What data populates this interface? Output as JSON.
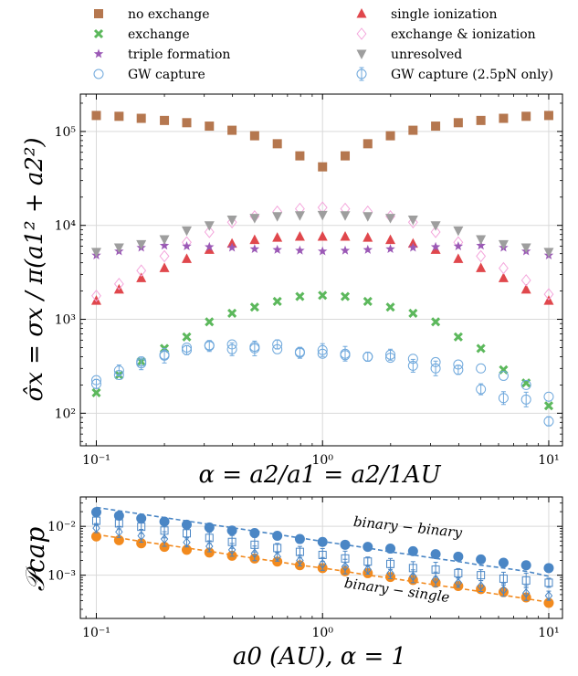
{
  "chart_data": [
    {
      "type": "scatter",
      "xscale": "log",
      "yscale": "log",
      "xlim": [
        0.085,
        11.5
      ],
      "ylim": [
        45,
        250000
      ],
      "grid": true,
      "legend_position": "top",
      "ylabel": "σ̂x = σx / π(a1² + a2²)",
      "xlabel": "α = a2/a1 = a2/1AU",
      "xticks": [
        {
          "v": 0.1,
          "label": "10⁻¹"
        },
        {
          "v": 1,
          "label": "10⁰"
        },
        {
          "v": 10,
          "label": "10¹"
        }
      ],
      "yticks": [
        {
          "v": 100,
          "label": "10²"
        },
        {
          "v": 1000,
          "label": "10³"
        },
        {
          "v": 10000,
          "label": "10⁴"
        },
        {
          "v": 100000,
          "label": "10⁵"
        }
      ],
      "x": [
        0.1,
        0.126,
        0.158,
        0.2,
        0.251,
        0.316,
        0.398,
        0.501,
        0.631,
        0.794,
        1.0,
        1.259,
        1.585,
        1.995,
        2.512,
        3.162,
        3.981,
        5.012,
        6.31,
        7.943,
        10.0
      ],
      "series": [
        {
          "name": "no exchange",
          "marker": "square",
          "color": "#b5774f",
          "values": [
            148000,
            145000,
            138000,
            131000,
            124000,
            114000,
            103000,
            90000,
            74000,
            55000,
            42000,
            55000,
            74000,
            90000,
            103000,
            114000,
            124000,
            131000,
            138000,
            145000,
            148000
          ]
        },
        {
          "name": "single ionization",
          "marker": "triangle-up",
          "color": "#e0474c",
          "values": [
            1580,
            2080,
            2750,
            3520,
            4400,
            5500,
            6400,
            7000,
            7400,
            7600,
            7600,
            7600,
            7400,
            7000,
            6400,
            5500,
            4400,
            3520,
            2750,
            2080,
            1580
          ]
        },
        {
          "name": "exchange",
          "marker": "x",
          "color": "#5cb85c",
          "values": [
            165,
            255,
            355,
            490,
            650,
            940,
            1160,
            1350,
            1550,
            1750,
            1800,
            1750,
            1550,
            1350,
            1160,
            940,
            650,
            490,
            290,
            210,
            120
          ]
        },
        {
          "name": "exchange & ionization",
          "marker": "diamond-open",
          "color": "#f4a6dc",
          "values": [
            1780,
            2380,
            3300,
            4700,
            6600,
            8500,
            10800,
            12500,
            14000,
            15000,
            15500,
            15000,
            14000,
            12500,
            10800,
            8500,
            6600,
            4700,
            3500,
            2600,
            1850
          ]
        },
        {
          "name": "triple formation",
          "marker": "star",
          "color": "#9b59b6",
          "values": [
            4800,
            5300,
            5800,
            6100,
            6000,
            5900,
            5800,
            5600,
            5500,
            5400,
            5300,
            5400,
            5500,
            5600,
            5800,
            5900,
            6000,
            6100,
            5800,
            5300,
            4800
          ]
        },
        {
          "name": "unresolved",
          "marker": "triangle-down",
          "color": "#9e9e9e",
          "values": [
            5200,
            5800,
            6300,
            7100,
            8800,
            10000,
            11500,
            12000,
            12500,
            12800,
            12900,
            12800,
            12500,
            12000,
            11500,
            10000,
            8800,
            7100,
            6300,
            5800,
            5200
          ]
        },
        {
          "name": "GW capture",
          "marker": "circle-open",
          "color": "#6fa8dc",
          "values": [
            225,
            255,
            355,
            420,
            500,
            530,
            540,
            510,
            480,
            450,
            430,
            415,
            400,
            390,
            380,
            350,
            330,
            300,
            250,
            200,
            150
          ]
        },
        {
          "name": "GW capture (2.5pN only)",
          "marker": "circle-open-errorbar",
          "color": "#6fa8dc",
          "values": [
            205,
            285,
            340,
            410,
            470,
            520,
            480,
            490,
            540,
            440,
            470,
            430,
            400,
            420,
            320,
            300,
            290,
            180,
            145,
            140,
            82
          ]
        }
      ],
      "legend": [
        {
          "label": "no exchange",
          "marker": "square",
          "color": "#b5774f"
        },
        {
          "label": "single ionization",
          "marker": "triangle-up",
          "color": "#e0474c"
        },
        {
          "label": "exchange",
          "marker": "x",
          "color": "#5cb85c"
        },
        {
          "label": "exchange & ionization",
          "marker": "diamond-open",
          "color": "#f4a6dc"
        },
        {
          "label": "triple formation",
          "marker": "star",
          "color": "#9b59b6"
        },
        {
          "label": "unresolved",
          "marker": "triangle-down",
          "color": "#9e9e9e"
        },
        {
          "label": "GW capture",
          "marker": "circle-open",
          "color": "#6fa8dc"
        },
        {
          "label": "GW capture (2.5pN only)",
          "marker": "circle-open-errorbar",
          "color": "#6fa8dc"
        }
      ]
    },
    {
      "type": "scatter",
      "xscale": "log",
      "yscale": "log",
      "xlim": [
        0.085,
        11.5
      ],
      "ylim": [
        0.00013,
        0.04
      ],
      "grid": true,
      "ylabel": "𝒫cap",
      "xlabel": "a0 (AU),  α = 1",
      "xticks": [
        {
          "v": 0.1,
          "label": "10⁻¹"
        },
        {
          "v": 1,
          "label": "10⁰"
        },
        {
          "v": 10,
          "label": "10¹"
        }
      ],
      "yticks": [
        {
          "v": 0.001,
          "label": "10⁻³"
        },
        {
          "v": 0.01,
          "label": "10⁻²"
        }
      ],
      "x": [
        0.1,
        0.126,
        0.158,
        0.2,
        0.251,
        0.316,
        0.398,
        0.501,
        0.631,
        0.794,
        1.0,
        1.259,
        1.585,
        1.995,
        2.512,
        3.162,
        3.981,
        5.012,
        6.31,
        7.943,
        10.0
      ],
      "annotations": [
        "binary − binary",
        "binary − single"
      ],
      "series": [
        {
          "name": "binary-binary",
          "marker": "circle",
          "color": "#4a86c5",
          "values": [
            0.0195,
            0.0165,
            0.0145,
            0.0125,
            0.0108,
            0.0095,
            0.0082,
            0.0073,
            0.0064,
            0.0055,
            0.0048,
            0.0042,
            0.0038,
            0.0035,
            0.0031,
            0.0027,
            0.0024,
            0.0021,
            0.0018,
            0.0016,
            0.0014
          ]
        },
        {
          "name": "binary-binary fit",
          "marker": "dashed-line",
          "color": "#4a86c5",
          "values": [
            0.0245,
            0.0208,
            0.0178,
            0.0151,
            0.0129,
            0.011,
            0.0094,
            0.008,
            0.0068,
            0.0058,
            0.0049,
            0.0042,
            0.0036,
            0.003,
            0.0026,
            0.0022,
            0.0019,
            0.0016,
            0.0014,
            0.0012,
            0.00095
          ]
        },
        {
          "name": "binary-single",
          "marker": "circle",
          "color": "#f28a1e",
          "values": [
            0.0062,
            0.0052,
            0.0045,
            0.0038,
            0.0033,
            0.0029,
            0.0025,
            0.0022,
            0.0019,
            0.0016,
            0.0014,
            0.0012,
            0.0011,
            0.00092,
            0.0008,
            0.0007,
            0.0006,
            0.00052,
            0.00045,
            0.00035,
            0.00027
          ]
        },
        {
          "name": "binary-single fit",
          "marker": "dashed-line",
          "color": "#f28a1e",
          "values": [
            0.0068,
            0.0058,
            0.0049,
            0.0042,
            0.0036,
            0.0031,
            0.0026,
            0.0022,
            0.0019,
            0.0016,
            0.0014,
            0.0012,
            0.001,
            0.00087,
            0.00074,
            0.00063,
            0.00054,
            0.00046,
            0.00039,
            0.00033,
            0.00028
          ]
        },
        {
          "name": "open squares",
          "marker": "square-open-errorbar",
          "color": "#4a86c5",
          "values": [
            0.013,
            0.0115,
            0.0098,
            0.0082,
            0.0072,
            0.0058,
            0.0048,
            0.0042,
            0.0036,
            0.003,
            0.0026,
            0.0022,
            0.0019,
            0.0017,
            0.0014,
            0.0013,
            0.0011,
            0.001,
            0.00085,
            0.00078,
            0.0007
          ]
        },
        {
          "name": "open diamonds",
          "marker": "diamond-open-errorbar",
          "color": "#4a86c5",
          "values": [
            0.0092,
            0.0077,
            0.0064,
            0.0055,
            0.0047,
            0.0039,
            0.0033,
            0.0028,
            0.0024,
            0.002,
            0.0017,
            0.0015,
            0.0013,
            0.0011,
            0.00095,
            0.00082,
            0.0007,
            0.0006,
            0.0005,
            0.00043,
            0.00038
          ]
        }
      ]
    }
  ]
}
